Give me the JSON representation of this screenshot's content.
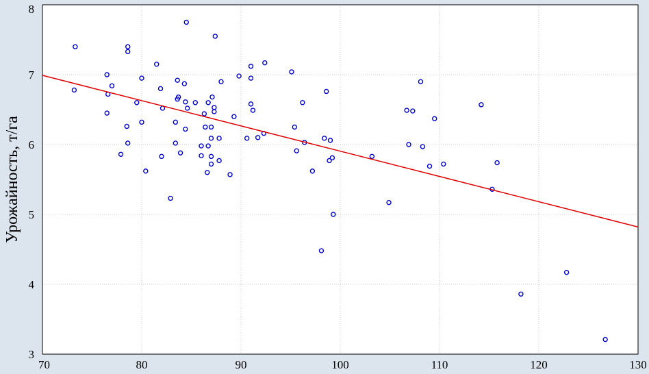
{
  "chart_data": {
    "type": "scatter",
    "title": "",
    "xlabel": "",
    "ylabel": "Урожайность, т/га",
    "xlim": [
      70,
      130
    ],
    "ylim": [
      3,
      8
    ],
    "x_ticks": [
      "70",
      "80",
      "90",
      "100",
      "110",
      "120",
      "130"
    ],
    "y_ticks": [
      "3",
      "4",
      "5",
      "6",
      "7",
      "8"
    ],
    "grid": true,
    "colors": {
      "background": "#dce5ed",
      "plot_area": "#ffffff",
      "points": "#0000cc",
      "regression_line": "#e00000",
      "grid": "#c8c8c8"
    },
    "regression_line": {
      "x": [
        70,
        130
      ],
      "y": [
        6.99,
        4.82
      ]
    },
    "points": [
      {
        "x": 73.3,
        "y": 7.4
      },
      {
        "x": 73.2,
        "y": 6.78
      },
      {
        "x": 76.5,
        "y": 7.0
      },
      {
        "x": 76.6,
        "y": 6.72
      },
      {
        "x": 76.5,
        "y": 6.45
      },
      {
        "x": 77.0,
        "y": 6.84
      },
      {
        "x": 77.9,
        "y": 5.86
      },
      {
        "x": 78.6,
        "y": 7.4
      },
      {
        "x": 78.6,
        "y": 7.33
      },
      {
        "x": 78.5,
        "y": 6.26
      },
      {
        "x": 78.6,
        "y": 6.02
      },
      {
        "x": 79.5,
        "y": 6.6
      },
      {
        "x": 80.0,
        "y": 6.95
      },
      {
        "x": 80.0,
        "y": 6.32
      },
      {
        "x": 80.4,
        "y": 5.62
      },
      {
        "x": 81.5,
        "y": 7.15
      },
      {
        "x": 81.9,
        "y": 6.8
      },
      {
        "x": 82.1,
        "y": 6.52
      },
      {
        "x": 82.0,
        "y": 5.83
      },
      {
        "x": 82.9,
        "y": 5.23
      },
      {
        "x": 83.4,
        "y": 6.32
      },
      {
        "x": 83.4,
        "y": 6.02
      },
      {
        "x": 83.6,
        "y": 6.92
      },
      {
        "x": 83.6,
        "y": 6.65
      },
      {
        "x": 83.7,
        "y": 6.68
      },
      {
        "x": 83.9,
        "y": 5.88
      },
      {
        "x": 84.3,
        "y": 6.87
      },
      {
        "x": 84.4,
        "y": 6.61
      },
      {
        "x": 84.4,
        "y": 6.22
      },
      {
        "x": 84.5,
        "y": 7.75
      },
      {
        "x": 84.6,
        "y": 6.52
      },
      {
        "x": 85.4,
        "y": 6.6
      },
      {
        "x": 86.0,
        "y": 5.84
      },
      {
        "x": 86.0,
        "y": 5.98
      },
      {
        "x": 86.3,
        "y": 6.44
      },
      {
        "x": 86.4,
        "y": 6.25
      },
      {
        "x": 86.6,
        "y": 5.6
      },
      {
        "x": 86.7,
        "y": 5.98
      },
      {
        "x": 86.7,
        "y": 6.6
      },
      {
        "x": 87.0,
        "y": 5.72
      },
      {
        "x": 87.0,
        "y": 5.83
      },
      {
        "x": 87.0,
        "y": 6.09
      },
      {
        "x": 87.0,
        "y": 6.25
      },
      {
        "x": 87.1,
        "y": 6.68
      },
      {
        "x": 87.3,
        "y": 6.53
      },
      {
        "x": 87.3,
        "y": 6.47
      },
      {
        "x": 87.4,
        "y": 7.55
      },
      {
        "x": 87.8,
        "y": 5.77
      },
      {
        "x": 87.8,
        "y": 6.09
      },
      {
        "x": 88.0,
        "y": 6.9
      },
      {
        "x": 88.9,
        "y": 5.57
      },
      {
        "x": 89.3,
        "y": 6.4
      },
      {
        "x": 89.8,
        "y": 6.98
      },
      {
        "x": 90.6,
        "y": 6.09
      },
      {
        "x": 91.0,
        "y": 7.12
      },
      {
        "x": 91.0,
        "y": 6.95
      },
      {
        "x": 91.0,
        "y": 6.58
      },
      {
        "x": 91.2,
        "y": 6.49
      },
      {
        "x": 91.7,
        "y": 6.1
      },
      {
        "x": 92.3,
        "y": 6.16
      },
      {
        "x": 92.4,
        "y": 7.17
      },
      {
        "x": 95.1,
        "y": 7.04
      },
      {
        "x": 95.4,
        "y": 6.25
      },
      {
        "x": 95.6,
        "y": 5.91
      },
      {
        "x": 96.2,
        "y": 6.6
      },
      {
        "x": 96.4,
        "y": 6.03
      },
      {
        "x": 97.2,
        "y": 5.62
      },
      {
        "x": 98.1,
        "y": 4.48
      },
      {
        "x": 98.4,
        "y": 6.09
      },
      {
        "x": 98.6,
        "y": 6.76
      },
      {
        "x": 98.9,
        "y": 5.77
      },
      {
        "x": 99.0,
        "y": 6.06
      },
      {
        "x": 99.2,
        "y": 5.81
      },
      {
        "x": 99.3,
        "y": 5.0
      },
      {
        "x": 103.2,
        "y": 5.83
      },
      {
        "x": 104.9,
        "y": 5.17
      },
      {
        "x": 106.7,
        "y": 6.49
      },
      {
        "x": 106.9,
        "y": 6.0
      },
      {
        "x": 107.3,
        "y": 6.48
      },
      {
        "x": 108.1,
        "y": 6.9
      },
      {
        "x": 108.3,
        "y": 5.97
      },
      {
        "x": 109.0,
        "y": 5.69
      },
      {
        "x": 109.5,
        "y": 6.37
      },
      {
        "x": 110.4,
        "y": 5.72
      },
      {
        "x": 114.2,
        "y": 6.57
      },
      {
        "x": 115.3,
        "y": 5.36
      },
      {
        "x": 115.8,
        "y": 5.74
      },
      {
        "x": 118.2,
        "y": 3.86
      },
      {
        "x": 122.8,
        "y": 4.17
      },
      {
        "x": 126.7,
        "y": 3.21
      }
    ]
  }
}
